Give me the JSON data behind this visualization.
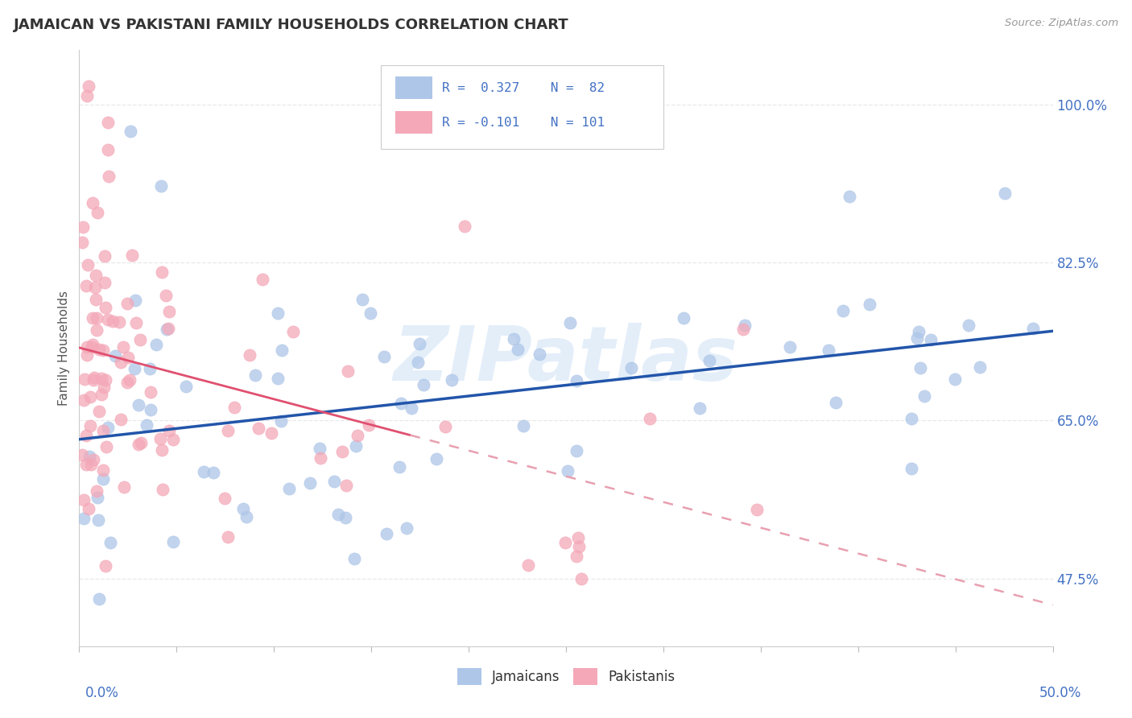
{
  "title": "JAMAICAN VS PAKISTANI FAMILY HOUSEHOLDS CORRELATION CHART",
  "source": "Source: ZipAtlas.com",
  "ylabel": "Family Households",
  "yticks": [
    "47.5%",
    "65.0%",
    "82.5%",
    "100.0%"
  ],
  "ytick_vals": [
    0.475,
    0.65,
    0.825,
    1.0
  ],
  "xlim": [
    0.0,
    0.5
  ],
  "ylim": [
    0.4,
    1.06
  ],
  "jamaican_dot_color": "#aec6e8",
  "pakistani_dot_color": "#f4a8b8",
  "trend_blue": "#2255aa",
  "trend_pink_solid": "#e05070",
  "trend_pink_dashed": "#e8a0b0",
  "r_jamaican": 0.327,
  "n_jamaican": 82,
  "r_pakistani": -0.101,
  "n_pakistani": 101,
  "watermark": "ZIPatlas",
  "legend_text_color": "#4472c4",
  "grid_color": "#e8e8e8",
  "title_color": "#333333",
  "source_color": "#999999"
}
